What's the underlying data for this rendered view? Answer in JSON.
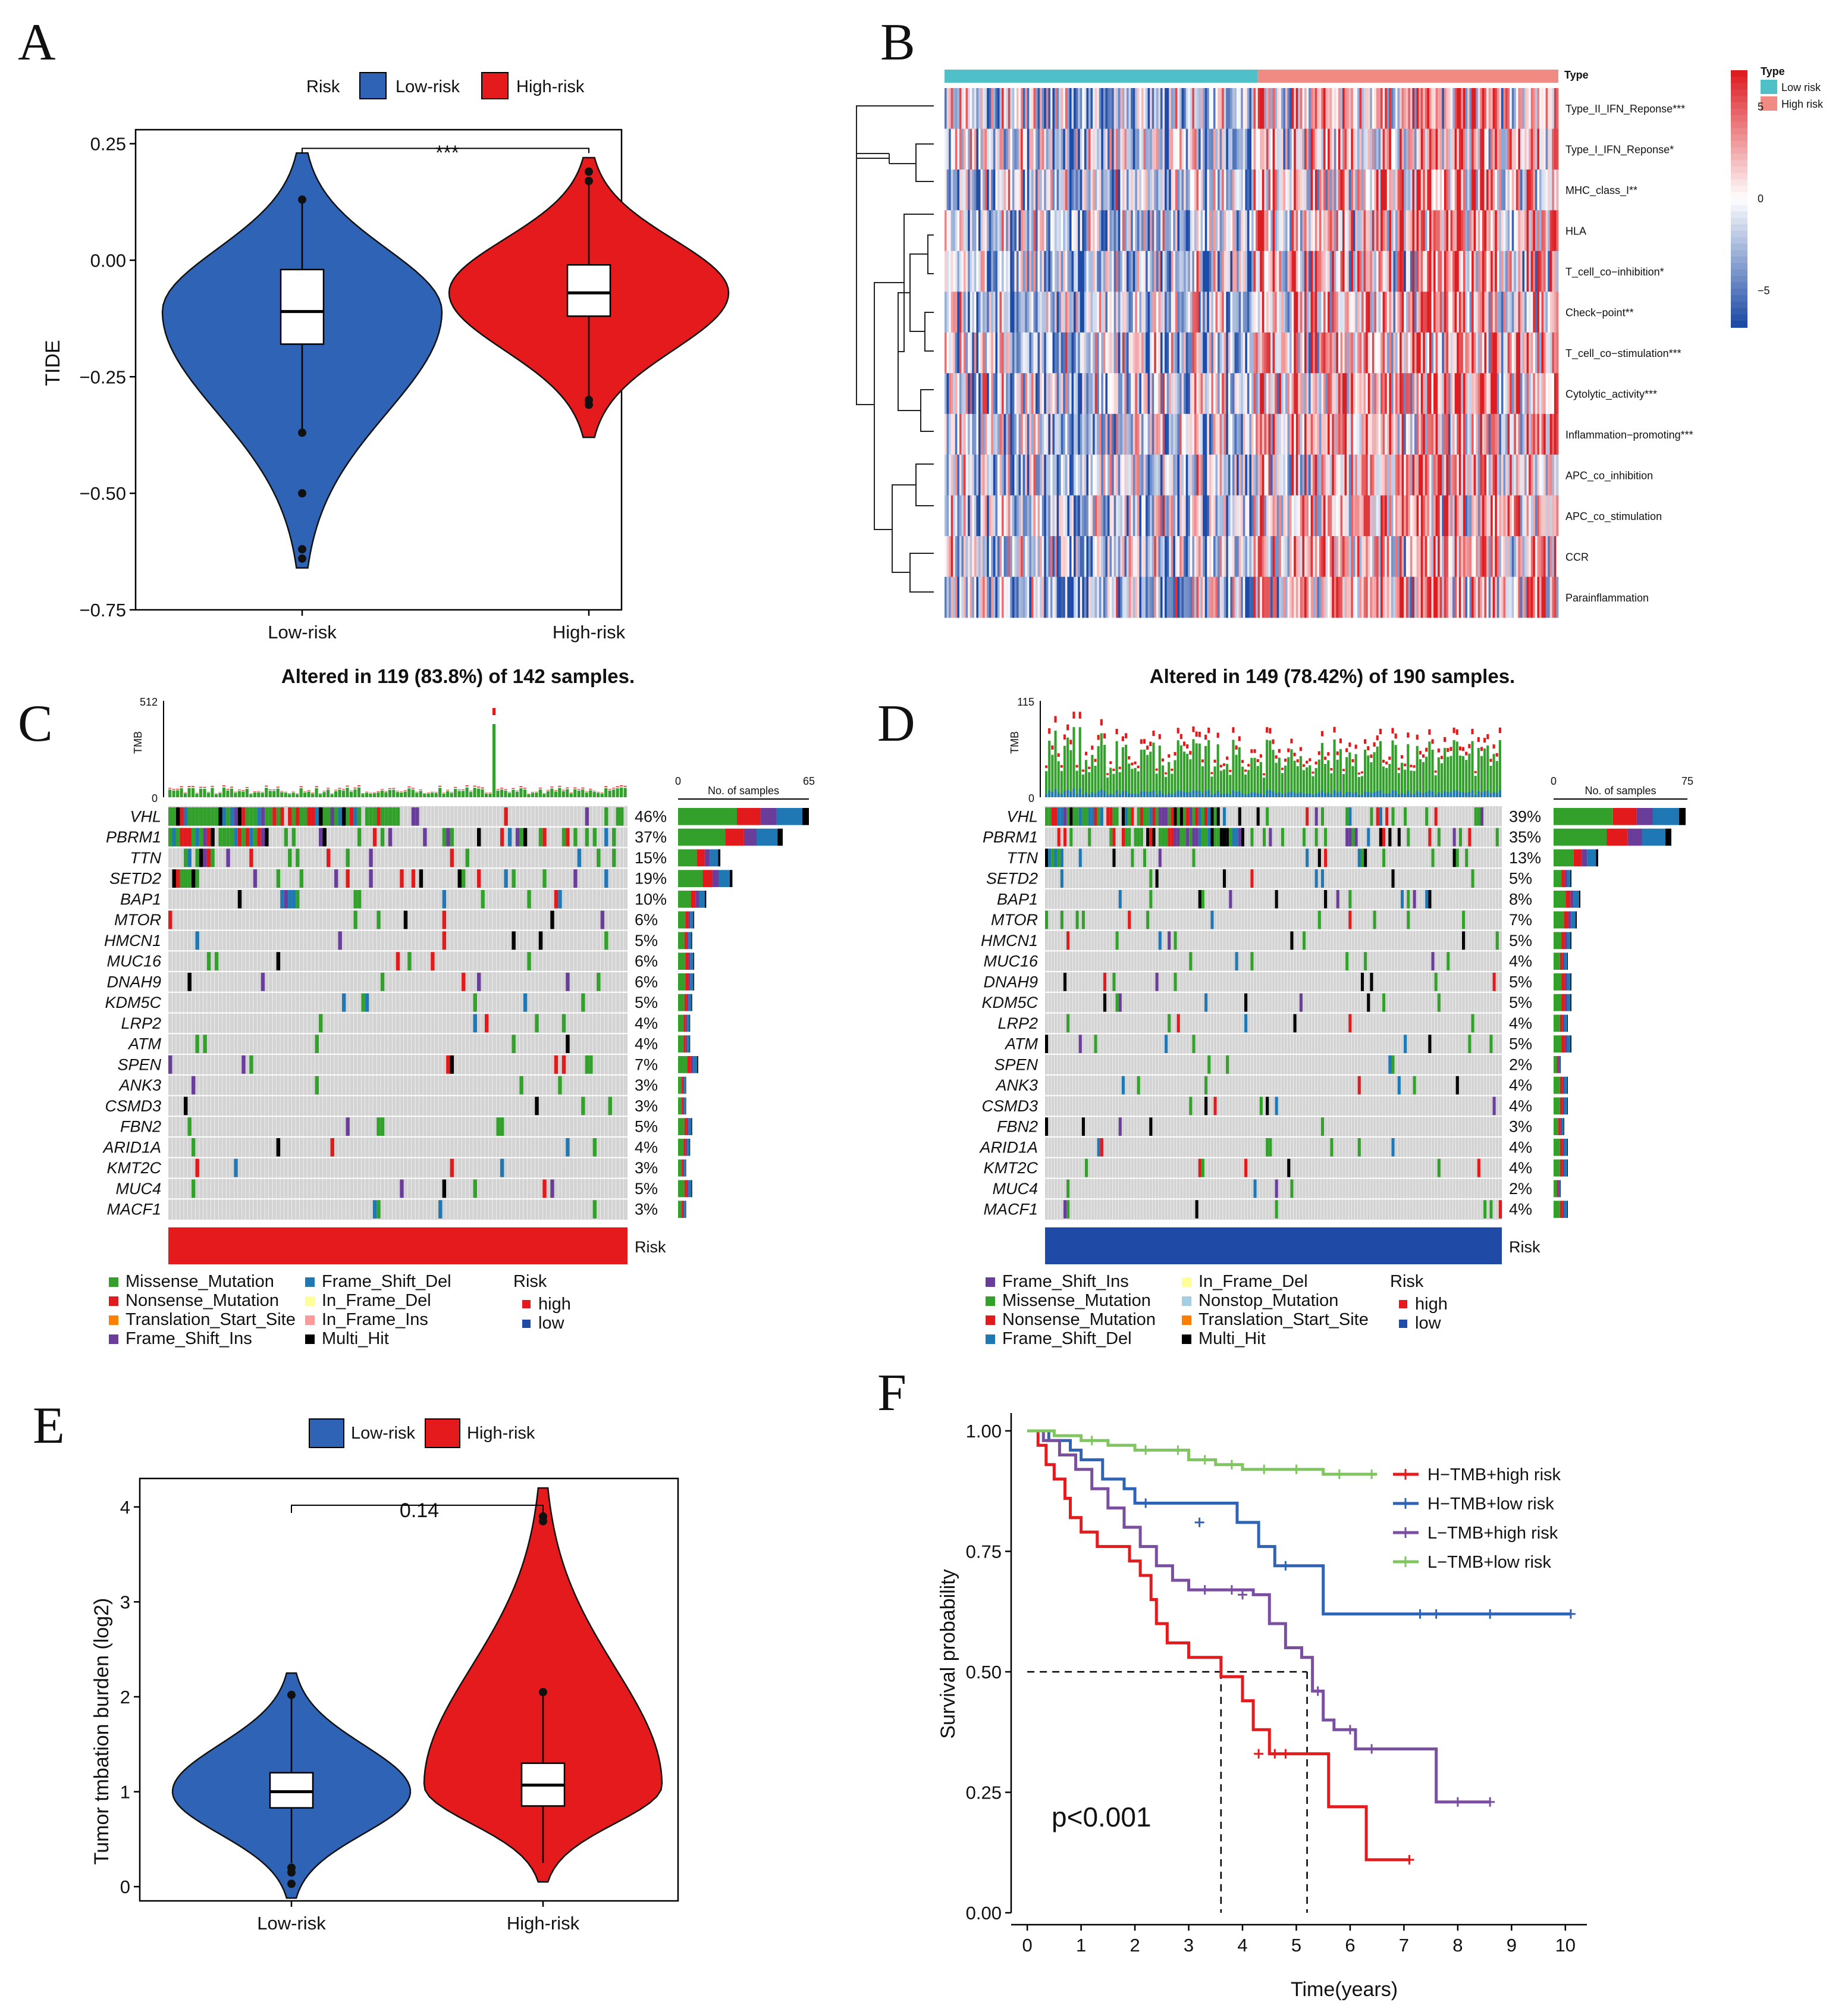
{
  "panels": {
    "A": "A",
    "B": "B",
    "C": "C",
    "D": "D",
    "E": "E",
    "F": "F"
  },
  "colors": {
    "low": "#2e63b5",
    "high": "#e41a1c",
    "missense": "#33a02c",
    "nonsense": "#e31a1c",
    "frame_del": "#1f78b4",
    "frame_ins": "#6a3d9a",
    "in_frame_del": "#ffff99",
    "in_frame_ins": "#fb9a99",
    "trans_start": "#ff7f00",
    "nonstop": "#a6cee3",
    "multi": "#000000",
    "grid": "#d3d3d3",
    "type_low": "#4fc0c8",
    "type_high": "#f08b84",
    "km_h_high": "#e41a1c",
    "km_h_low": "#2e63b5",
    "km_l_high": "#7b4fa0",
    "km_l_low": "#7fc65f"
  },
  "chart_data": [
    {
      "id": "A",
      "type": "violin",
      "legend_title": "Risk",
      "legend": [
        "Low-risk",
        "High-risk"
      ],
      "categories": [
        "Low-risk",
        "High-risk"
      ],
      "ylabel": "TIDE",
      "xlabel": "",
      "ylim": [
        -0.75,
        0.28
      ],
      "yticks": [
        "0.25",
        "0.00",
        "−0.25",
        "−0.50",
        "−0.75"
      ],
      "ytick_values": [
        0.25,
        0.0,
        -0.25,
        -0.5,
        -0.75
      ],
      "significance": "***",
      "box": [
        {
          "q1": -0.18,
          "median": -0.11,
          "q3": -0.02,
          "wmin": -0.37,
          "wmax": 0.13
        },
        {
          "q1": -0.12,
          "median": -0.07,
          "q3": -0.01,
          "wmin": -0.3,
          "wmax": 0.17
        }
      ],
      "range": [
        [
          -0.66,
          0.23
        ],
        [
          -0.38,
          0.22
        ]
      ],
      "outliers": [
        [
          -0.37,
          -0.5,
          -0.62,
          -0.64,
          0.13
        ],
        [
          0.17,
          0.19,
          -0.3,
          -0.31
        ]
      ]
    },
    {
      "id": "B",
      "type": "heatmap",
      "annotation_label": "Type",
      "legend_title": "Type",
      "legend": [
        "Low risk",
        "High risk"
      ],
      "color_scale_ticks": [
        "5",
        "0",
        "−5"
      ],
      "color_scale_values": [
        5,
        0,
        -5
      ],
      "rows": [
        "Type_II_IFN_Reponse***",
        "Type_I_IFN_Reponse*",
        "MHC_class_I**",
        "HLA",
        "T_cell_co−inhibition*",
        "Check−point**",
        "T_cell_co−stimulation***",
        "Cytolytic_activity***",
        "Inflammation−promoting***",
        "APC_co_inhibition",
        "APC_co_stimulation",
        "CCR",
        "Parainflammation"
      ],
      "low_fraction": 0.51
    },
    {
      "id": "C",
      "type": "oncoplot",
      "title": "Altered in 119 (83.8%) of 142 samples.",
      "tmb_label": "TMB",
      "tmb_max": "512",
      "tmb_zero": "0",
      "bar_label": "No. of samples",
      "bar_min": "0",
      "bar_max": "65",
      "risk_label": "Risk",
      "genes": [
        "VHL",
        "PBRM1",
        "TTN",
        "SETD2",
        "BAP1",
        "MTOR",
        "HMCN1",
        "MUC16",
        "DNAH9",
        "KDM5C",
        "LRP2",
        "ATM",
        "SPEN",
        "ANK3",
        "CSMD3",
        "FBN2",
        "ARID1A",
        "KMT2C",
        "MUC4",
        "MACF1"
      ],
      "pcts": [
        "46%",
        "37%",
        "15%",
        "19%",
        "10%",
        "6%",
        "5%",
        "6%",
        "6%",
        "5%",
        "4%",
        "4%",
        "7%",
        "3%",
        "3%",
        "5%",
        "4%",
        "3%",
        "5%",
        "3%"
      ],
      "counts": [
        65,
        52,
        21,
        27,
        14,
        8,
        7,
        8,
        8,
        7,
        6,
        6,
        10,
        4,
        4,
        7,
        6,
        4,
        7,
        4
      ],
      "legend": [
        "Missense_Mutation",
        "Nonsense_Mutation",
        "Translation_Start_Site",
        "Frame_Shift_Ins",
        "Frame_Shift_Del",
        "In_Frame_Del",
        "In_Frame_Ins",
        "Multi_Hit"
      ],
      "legend_keys": [
        "missense",
        "nonsense",
        "trans_start",
        "frame_ins",
        "frame_del",
        "in_frame_del",
        "in_frame_ins",
        "multi"
      ],
      "risk_legend_title": "Risk",
      "risk_legend": [
        "high",
        "low"
      ],
      "risk_color": "high"
    },
    {
      "id": "D",
      "type": "oncoplot",
      "title": "Altered in 149 (78.42%) of 190 samples.",
      "tmb_label": "TMB",
      "tmb_max": "115",
      "tmb_zero": "0",
      "bar_label": "No. of samples",
      "bar_min": "0",
      "bar_max": "75",
      "risk_label": "Risk",
      "genes": [
        "VHL",
        "PBRM1",
        "TTN",
        "SETD2",
        "BAP1",
        "MTOR",
        "HMCN1",
        "MUC16",
        "DNAH9",
        "KDM5C",
        "LRP2",
        "ATM",
        "SPEN",
        "ANK3",
        "CSMD3",
        "FBN2",
        "ARID1A",
        "KMT2C",
        "MUC4",
        "MACF1"
      ],
      "pcts": [
        "39%",
        "35%",
        "13%",
        "5%",
        "8%",
        "7%",
        "5%",
        "4%",
        "5%",
        "5%",
        "4%",
        "5%",
        "2%",
        "4%",
        "4%",
        "3%",
        "4%",
        "4%",
        "2%",
        "4%"
      ],
      "counts": [
        74,
        66,
        25,
        10,
        15,
        13,
        10,
        8,
        10,
        10,
        8,
        10,
        4,
        8,
        8,
        6,
        8,
        8,
        4,
        8
      ],
      "legend": [
        "Frame_Shift_Ins",
        "Missense_Mutation",
        "Nonsense_Mutation",
        "Frame_Shift_Del",
        "In_Frame_Del",
        "Nonstop_Mutation",
        "Translation_Start_Site",
        "Multi_Hit"
      ],
      "legend_keys": [
        "frame_ins",
        "missense",
        "nonsense",
        "frame_del",
        "in_frame_del",
        "nonstop",
        "trans_start",
        "multi"
      ],
      "risk_legend_title": "Risk",
      "risk_legend": [
        "high",
        "low"
      ],
      "risk_color": "low"
    },
    {
      "id": "E",
      "type": "violin",
      "legend": [
        "Low-risk",
        "High-risk"
      ],
      "categories": [
        "Low-risk",
        "High-risk"
      ],
      "ylabel": "Tumor tmbation burden (log2)",
      "xlabel": "",
      "ylim": [
        -0.15,
        4.3
      ],
      "yticks": [
        "4",
        "3",
        "2",
        "1",
        "0"
      ],
      "ytick_values": [
        4,
        3,
        2,
        1,
        0
      ],
      "significance": "0.14",
      "box": [
        {
          "q1": 0.83,
          "median": 1.0,
          "q3": 1.2,
          "wmin": 0.25,
          "wmax": 2.0
        },
        {
          "q1": 0.85,
          "median": 1.07,
          "q3": 1.3,
          "wmin": 0.25,
          "wmax": 2.05
        }
      ],
      "range": [
        [
          -0.12,
          2.25
        ],
        [
          0.05,
          4.2
        ]
      ],
      "outliers": [
        [
          0.2,
          0.15,
          0.03,
          2.02
        ],
        [
          2.05,
          3.85,
          3.9
        ]
      ]
    },
    {
      "id": "F",
      "type": "line",
      "xlabel": "Time(years)",
      "ylabel": "Survival probability",
      "xlim": [
        -0.3,
        10.4
      ],
      "ylim": [
        0,
        1.0
      ],
      "xticks": [
        "0",
        "1",
        "2",
        "3",
        "4",
        "5",
        "6",
        "7",
        "8",
        "9",
        "10"
      ],
      "xtick_values": [
        0,
        1,
        2,
        3,
        4,
        5,
        6,
        7,
        8,
        9,
        10
      ],
      "yticks": [
        "1.00",
        "0.75",
        "0.50",
        "0.25",
        "0.00"
      ],
      "ytick_values": [
        1.0,
        0.75,
        0.5,
        0.25,
        0.0
      ],
      "pvalue": "p<0.001",
      "median_lines": [
        3.6,
        5.2
      ],
      "series": [
        {
          "name": "H−TMB+high risk",
          "color": "km_h_high",
          "x": [
            0,
            0.2,
            0.35,
            0.5,
            0.7,
            0.8,
            1.0,
            1.3,
            1.6,
            1.9,
            2.1,
            2.3,
            2.4,
            2.6,
            3.0,
            3.2,
            3.6,
            4.0,
            4.2,
            4.5,
            5.2,
            5.6,
            6.3,
            7.1
          ],
          "y": [
            1.0,
            0.97,
            0.93,
            0.9,
            0.86,
            0.82,
            0.79,
            0.76,
            0.76,
            0.73,
            0.7,
            0.65,
            0.6,
            0.56,
            0.53,
            0.53,
            0.49,
            0.44,
            0.38,
            0.33,
            0.33,
            0.22,
            0.11,
            0.11
          ],
          "censors": [
            [
              4.3,
              0.33
            ],
            [
              4.6,
              0.33
            ],
            [
              4.8,
              0.33
            ],
            [
              7.1,
              0.11
            ]
          ]
        },
        {
          "name": "H−TMB+low risk",
          "color": "km_h_low",
          "x": [
            0,
            0.4,
            0.8,
            1.0,
            1.4,
            1.8,
            2.0,
            2.7,
            3.9,
            4.3,
            4.6,
            5.5,
            10.1
          ],
          "y": [
            1.0,
            0.98,
            0.96,
            0.94,
            0.9,
            0.88,
            0.85,
            0.85,
            0.81,
            0.76,
            0.72,
            0.62,
            0.62
          ],
          "censors": [
            [
              2.2,
              0.85
            ],
            [
              3.2,
              0.81
            ],
            [
              4.8,
              0.72
            ],
            [
              7.3,
              0.62
            ],
            [
              7.6,
              0.62
            ],
            [
              8.6,
              0.62
            ],
            [
              10.1,
              0.62
            ]
          ]
        },
        {
          "name": "L−TMB+high risk",
          "color": "km_l_high",
          "x": [
            0,
            0.3,
            0.6,
            0.9,
            1.2,
            1.5,
            1.8,
            2.1,
            2.4,
            2.7,
            3.0,
            3.5,
            4.2,
            4.5,
            4.8,
            5.1,
            5.3,
            5.5,
            5.7,
            6.1,
            6.8,
            7.6,
            8.6
          ],
          "y": [
            1.0,
            0.98,
            0.95,
            0.92,
            0.88,
            0.84,
            0.8,
            0.76,
            0.72,
            0.69,
            0.67,
            0.67,
            0.66,
            0.6,
            0.55,
            0.53,
            0.46,
            0.4,
            0.38,
            0.34,
            0.34,
            0.23,
            0.23
          ],
          "censors": [
            [
              3.3,
              0.67
            ],
            [
              3.8,
              0.67
            ],
            [
              4.0,
              0.66
            ],
            [
              5.4,
              0.46
            ],
            [
              6.0,
              0.38
            ],
            [
              6.4,
              0.34
            ],
            [
              8.0,
              0.23
            ],
            [
              8.6,
              0.23
            ]
          ]
        },
        {
          "name": "L−TMB+low risk",
          "color": "km_l_low",
          "x": [
            0,
            0.5,
            1.0,
            1.5,
            2.0,
            2.5,
            3.0,
            3.5,
            4.0,
            4.5,
            5.0,
            5.5,
            6.5
          ],
          "y": [
            1.0,
            0.99,
            0.98,
            0.97,
            0.96,
            0.96,
            0.94,
            0.93,
            0.92,
            0.92,
            0.92,
            0.91,
            0.91
          ],
          "censors": [
            [
              1.2,
              0.98
            ],
            [
              2.2,
              0.96
            ],
            [
              2.8,
              0.96
            ],
            [
              3.3,
              0.94
            ],
            [
              3.8,
              0.93
            ],
            [
              4.4,
              0.92
            ],
            [
              5.0,
              0.92
            ],
            [
              5.8,
              0.91
            ],
            [
              6.4,
              0.91
            ]
          ]
        }
      ]
    }
  ]
}
